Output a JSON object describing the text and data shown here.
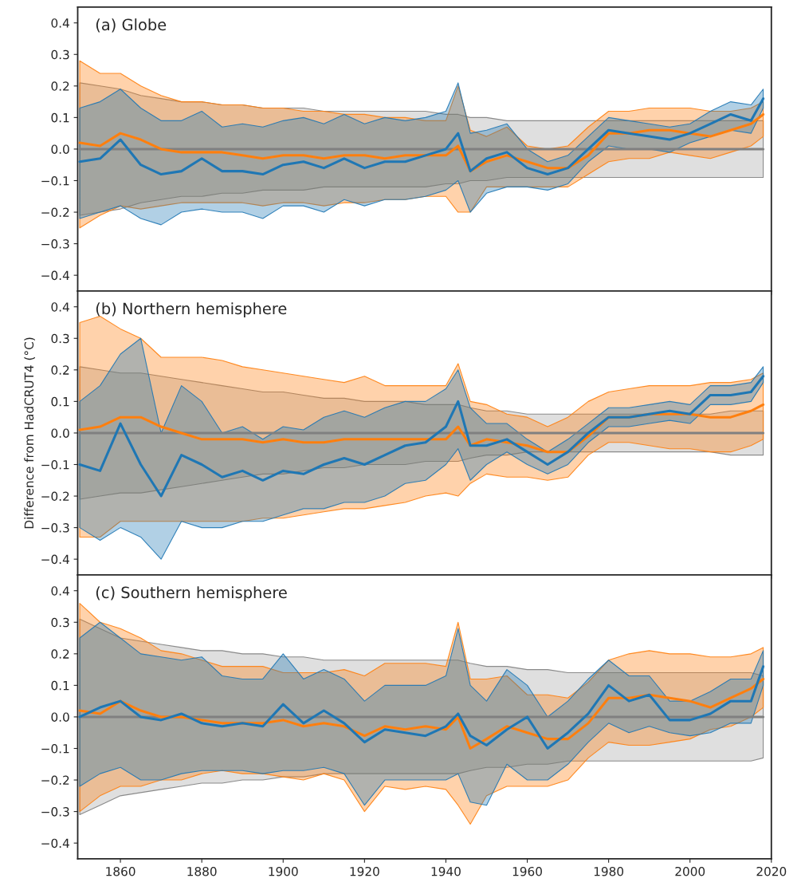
{
  "chart_data": [
    {
      "type": "line",
      "title": "(a) Globe",
      "x": [
        1850,
        1855,
        1860,
        1865,
        1870,
        1875,
        1880,
        1885,
        1890,
        1895,
        1900,
        1905,
        1910,
        1915,
        1920,
        1925,
        1930,
        1935,
        1940,
        1943,
        1946,
        1950,
        1955,
        1960,
        1965,
        1970,
        1975,
        1980,
        1985,
        1990,
        1995,
        2000,
        2005,
        2010,
        2015,
        2018
      ],
      "xlim": [
        1849.5,
        2020
      ],
      "xticks": [
        1860,
        1880,
        1900,
        1920,
        1940,
        1960,
        1980,
        2000,
        2020
      ],
      "ylim": [
        -0.45,
        0.45
      ],
      "yticks": [
        {
          "value": -0.4,
          "label": "−0.4"
        },
        {
          "value": -0.3,
          "label": "−0.3"
        },
        {
          "value": -0.2,
          "label": "−0.2"
        },
        {
          "value": -0.1,
          "label": "−0.1"
        },
        {
          "value": 0.0,
          "label": "0.0"
        },
        0.1,
        0.2,
        0.3,
        0.4
      ],
      "tick_labels": "y",
      "grid": false,
      "line_style": "solid",
      "series": [
        {
          "color": "#808080",
          "values": [
            0,
            0,
            0,
            0,
            0,
            0,
            0,
            0,
            0,
            0,
            0,
            0,
            0,
            0,
            0,
            0,
            0,
            0,
            0,
            0,
            0,
            0,
            0,
            0,
            0,
            0,
            0,
            0,
            0,
            0,
            0,
            0,
            0,
            0,
            0,
            0
          ],
          "lower": [
            -0.21,
            -0.2,
            -0.19,
            -0.17,
            -0.16,
            -0.15,
            -0.15,
            -0.14,
            -0.14,
            -0.13,
            -0.13,
            -0.13,
            -0.12,
            -0.12,
            -0.12,
            -0.12,
            -0.12,
            -0.12,
            -0.11,
            -0.11,
            -0.1,
            -0.1,
            -0.09,
            -0.09,
            -0.09,
            -0.09,
            -0.09,
            -0.09,
            -0.09,
            -0.09,
            -0.09,
            -0.09,
            -0.09,
            -0.09,
            -0.09,
            -0.09
          ],
          "upper": [
            0.21,
            0.2,
            0.19,
            0.17,
            0.16,
            0.15,
            0.15,
            0.14,
            0.14,
            0.13,
            0.13,
            0.13,
            0.12,
            0.12,
            0.12,
            0.12,
            0.12,
            0.12,
            0.11,
            0.11,
            0.1,
            0.1,
            0.09,
            0.09,
            0.09,
            0.09,
            0.09,
            0.09,
            0.09,
            0.09,
            0.09,
            0.09,
            0.09,
            0.09,
            0.09,
            0.09
          ]
        },
        {
          "color": "#ff7f0e",
          "values": [
            0.02,
            0.01,
            0.05,
            0.03,
            0.0,
            -0.01,
            -0.01,
            -0.01,
            -0.02,
            -0.03,
            -0.02,
            -0.02,
            -0.03,
            -0.02,
            -0.02,
            -0.03,
            -0.02,
            -0.02,
            -0.02,
            0.01,
            -0.07,
            -0.04,
            -0.02,
            -0.04,
            -0.06,
            -0.06,
            -0.02,
            0.05,
            0.05,
            0.06,
            0.06,
            0.05,
            0.04,
            0.06,
            0.08,
            0.11
          ],
          "lower": [
            -0.25,
            -0.21,
            -0.18,
            -0.19,
            -0.18,
            -0.17,
            -0.17,
            -0.17,
            -0.17,
            -0.18,
            -0.17,
            -0.17,
            -0.18,
            -0.17,
            -0.17,
            -0.16,
            -0.16,
            -0.15,
            -0.15,
            -0.2,
            -0.2,
            -0.12,
            -0.12,
            -0.12,
            -0.12,
            -0.12,
            -0.08,
            -0.04,
            -0.03,
            -0.03,
            -0.01,
            -0.02,
            -0.03,
            -0.01,
            0.01,
            0.04
          ],
          "upper": [
            0.28,
            0.24,
            0.24,
            0.2,
            0.17,
            0.15,
            0.15,
            0.14,
            0.14,
            0.13,
            0.13,
            0.12,
            0.12,
            0.11,
            0.11,
            0.1,
            0.1,
            0.09,
            0.09,
            0.2,
            0.06,
            0.04,
            0.07,
            0.01,
            0.0,
            0.01,
            0.07,
            0.12,
            0.12,
            0.13,
            0.13,
            0.13,
            0.12,
            0.12,
            0.13,
            0.15
          ]
        },
        {
          "color": "#1f77b4",
          "values": [
            -0.04,
            -0.03,
            0.03,
            -0.05,
            -0.08,
            -0.07,
            -0.03,
            -0.07,
            -0.07,
            -0.08,
            -0.05,
            -0.04,
            -0.06,
            -0.03,
            -0.06,
            -0.04,
            -0.04,
            -0.02,
            0.0,
            0.05,
            -0.07,
            -0.03,
            -0.01,
            -0.06,
            -0.08,
            -0.06,
            0.0,
            0.06,
            0.05,
            0.04,
            0.03,
            0.05,
            0.08,
            0.11,
            0.09,
            0.16
          ],
          "lower": [
            -0.22,
            -0.2,
            -0.18,
            -0.22,
            -0.24,
            -0.2,
            -0.19,
            -0.2,
            -0.2,
            -0.22,
            -0.18,
            -0.18,
            -0.2,
            -0.16,
            -0.18,
            -0.16,
            -0.16,
            -0.15,
            -0.13,
            -0.1,
            -0.2,
            -0.14,
            -0.12,
            -0.12,
            -0.13,
            -0.11,
            -0.04,
            0.01,
            0.0,
            0.0,
            -0.01,
            0.02,
            0.04,
            0.06,
            0.05,
            0.13
          ],
          "upper": [
            0.13,
            0.15,
            0.19,
            0.13,
            0.09,
            0.09,
            0.12,
            0.07,
            0.08,
            0.07,
            0.09,
            0.1,
            0.08,
            0.11,
            0.08,
            0.1,
            0.09,
            0.1,
            0.12,
            0.21,
            0.05,
            0.06,
            0.08,
            0.0,
            -0.04,
            -0.02,
            0.04,
            0.1,
            0.09,
            0.08,
            0.07,
            0.08,
            0.12,
            0.15,
            0.14,
            0.19
          ]
        }
      ]
    },
    {
      "type": "line",
      "title": "(b) Northern hemisphere",
      "ylabel": "Difference from HadCRUT4 (°C)",
      "x": [
        1850,
        1855,
        1860,
        1865,
        1870,
        1875,
        1880,
        1885,
        1890,
        1895,
        1900,
        1905,
        1910,
        1915,
        1920,
        1925,
        1930,
        1935,
        1940,
        1943,
        1946,
        1950,
        1955,
        1960,
        1965,
        1970,
        1975,
        1980,
        1985,
        1990,
        1995,
        2000,
        2005,
        2010,
        2015,
        2018
      ],
      "xlim": [
        1849.5,
        2020
      ],
      "xticks": [
        1860,
        1880,
        1900,
        1920,
        1940,
        1960,
        1980,
        2000,
        2020
      ],
      "ylim": [
        -0.45,
        0.45
      ],
      "yticks": [
        {
          "value": -0.4,
          "label": "−0.4"
        },
        {
          "value": -0.3,
          "label": "−0.3"
        },
        {
          "value": -0.2,
          "label": "−0.2"
        },
        {
          "value": -0.1,
          "label": "−0.1"
        },
        {
          "value": 0.0,
          "label": "0.0"
        },
        0.1,
        0.2,
        0.3,
        0.4
      ],
      "tick_labels": "y",
      "grid": false,
      "line_style": "solid",
      "series": [
        {
          "color": "#808080",
          "values": [
            0,
            0,
            0,
            0,
            0,
            0,
            0,
            0,
            0,
            0,
            0,
            0,
            0,
            0,
            0,
            0,
            0,
            0,
            0,
            0,
            0,
            0,
            0,
            0,
            0,
            0,
            0,
            0,
            0,
            0,
            0,
            0,
            0,
            0,
            0,
            0
          ],
          "lower": [
            -0.21,
            -0.2,
            -0.19,
            -0.19,
            -0.18,
            -0.17,
            -0.16,
            -0.15,
            -0.14,
            -0.13,
            -0.13,
            -0.12,
            -0.11,
            -0.11,
            -0.1,
            -0.1,
            -0.1,
            -0.09,
            -0.09,
            -0.09,
            -0.08,
            -0.07,
            -0.07,
            -0.06,
            -0.06,
            -0.06,
            -0.06,
            -0.06,
            -0.06,
            -0.06,
            -0.06,
            -0.06,
            -0.06,
            -0.07,
            -0.07,
            -0.07
          ],
          "upper": [
            0.21,
            0.2,
            0.19,
            0.19,
            0.18,
            0.17,
            0.16,
            0.15,
            0.14,
            0.13,
            0.13,
            0.12,
            0.11,
            0.11,
            0.1,
            0.1,
            0.1,
            0.09,
            0.09,
            0.09,
            0.08,
            0.07,
            0.07,
            0.06,
            0.06,
            0.06,
            0.06,
            0.06,
            0.06,
            0.06,
            0.06,
            0.06,
            0.06,
            0.07,
            0.07,
            0.07
          ]
        },
        {
          "color": "#ff7f0e",
          "values": [
            0.01,
            0.02,
            0.05,
            0.05,
            0.02,
            0.0,
            -0.02,
            -0.02,
            -0.02,
            -0.03,
            -0.02,
            -0.03,
            -0.03,
            -0.02,
            -0.02,
            -0.02,
            -0.02,
            -0.02,
            -0.02,
            0.02,
            -0.04,
            -0.02,
            -0.03,
            -0.04,
            -0.06,
            -0.06,
            -0.01,
            0.05,
            0.05,
            0.06,
            0.06,
            0.06,
            0.05,
            0.05,
            0.07,
            0.09
          ],
          "lower": [
            -0.33,
            -0.33,
            -0.28,
            -0.28,
            -0.28,
            -0.28,
            -0.28,
            -0.28,
            -0.28,
            -0.27,
            -0.27,
            -0.26,
            -0.25,
            -0.24,
            -0.24,
            -0.23,
            -0.22,
            -0.2,
            -0.19,
            -0.2,
            -0.16,
            -0.13,
            -0.14,
            -0.14,
            -0.15,
            -0.14,
            -0.07,
            -0.03,
            -0.03,
            -0.04,
            -0.05,
            -0.05,
            -0.06,
            -0.06,
            -0.04,
            -0.02
          ],
          "upper": [
            0.35,
            0.37,
            0.33,
            0.3,
            0.24,
            0.24,
            0.24,
            0.23,
            0.21,
            0.2,
            0.19,
            0.18,
            0.17,
            0.16,
            0.18,
            0.15,
            0.15,
            0.15,
            0.15,
            0.22,
            0.1,
            0.09,
            0.06,
            0.05,
            0.02,
            0.05,
            0.1,
            0.13,
            0.14,
            0.15,
            0.15,
            0.15,
            0.16,
            0.16,
            0.17,
            0.19
          ]
        },
        {
          "color": "#1f77b4",
          "values": [
            -0.1,
            -0.12,
            0.03,
            -0.1,
            -0.2,
            -0.07,
            -0.1,
            -0.14,
            -0.12,
            -0.15,
            -0.12,
            -0.13,
            -0.1,
            -0.08,
            -0.1,
            -0.07,
            -0.04,
            -0.03,
            0.02,
            0.1,
            -0.04,
            -0.04,
            -0.02,
            -0.06,
            -0.1,
            -0.06,
            0.0,
            0.05,
            0.05,
            0.06,
            0.07,
            0.06,
            0.12,
            0.12,
            0.13,
            0.18
          ],
          "lower": [
            -0.3,
            -0.34,
            -0.3,
            -0.33,
            -0.4,
            -0.28,
            -0.3,
            -0.3,
            -0.28,
            -0.28,
            -0.26,
            -0.24,
            -0.24,
            -0.22,
            -0.22,
            -0.2,
            -0.16,
            -0.15,
            -0.1,
            -0.05,
            -0.15,
            -0.1,
            -0.06,
            -0.1,
            -0.13,
            -0.1,
            -0.03,
            0.02,
            0.02,
            0.03,
            0.04,
            0.03,
            0.09,
            0.09,
            0.1,
            0.16
          ],
          "upper": [
            0.1,
            0.15,
            0.25,
            0.3,
            0.0,
            0.15,
            0.1,
            0.0,
            0.02,
            -0.02,
            0.02,
            0.01,
            0.05,
            0.07,
            0.05,
            0.08,
            0.1,
            0.1,
            0.14,
            0.2,
            0.08,
            0.03,
            0.03,
            -0.02,
            -0.06,
            -0.02,
            0.03,
            0.08,
            0.08,
            0.09,
            0.1,
            0.09,
            0.15,
            0.15,
            0.16,
            0.21
          ]
        }
      ]
    },
    {
      "type": "line",
      "title": "(c) Southern hemisphere",
      "x": [
        1850,
        1855,
        1860,
        1865,
        1870,
        1875,
        1880,
        1885,
        1890,
        1895,
        1900,
        1905,
        1910,
        1915,
        1920,
        1925,
        1930,
        1935,
        1940,
        1943,
        1946,
        1950,
        1955,
        1960,
        1965,
        1970,
        1975,
        1980,
        1985,
        1990,
        1995,
        2000,
        2005,
        2010,
        2015,
        2018
      ],
      "xlim": [
        1849.5,
        2020
      ],
      "xticks": [
        1860,
        1880,
        1900,
        1920,
        1940,
        1960,
        1980,
        2000,
        2020
      ],
      "ylim": [
        -0.45,
        0.45
      ],
      "yticks": [
        {
          "value": -0.4,
          "label": "−0.4"
        },
        {
          "value": -0.3,
          "label": "−0.3"
        },
        {
          "value": -0.2,
          "label": "−0.2"
        },
        {
          "value": -0.1,
          "label": "−0.1"
        },
        {
          "value": 0.0,
          "label": "0.0"
        },
        0.1,
        0.2,
        0.3,
        0.4
      ],
      "grid": false,
      "line_style": "solid",
      "series": [
        {
          "color": "#808080",
          "values": [
            0,
            0,
            0,
            0,
            0,
            0,
            0,
            0,
            0,
            0,
            0,
            0,
            0,
            0,
            0,
            0,
            0,
            0,
            0,
            0,
            0,
            0,
            0,
            0,
            0,
            0,
            0,
            0,
            0,
            0,
            0,
            0,
            0,
            0,
            0,
            0
          ],
          "lower": [
            -0.31,
            -0.28,
            -0.25,
            -0.24,
            -0.23,
            -0.22,
            -0.21,
            -0.21,
            -0.2,
            -0.2,
            -0.19,
            -0.19,
            -0.18,
            -0.18,
            -0.18,
            -0.18,
            -0.18,
            -0.18,
            -0.18,
            -0.18,
            -0.17,
            -0.16,
            -0.16,
            -0.15,
            -0.15,
            -0.14,
            -0.14,
            -0.14,
            -0.14,
            -0.14,
            -0.14,
            -0.14,
            -0.14,
            -0.14,
            -0.14,
            -0.13
          ],
          "upper": [
            0.31,
            0.28,
            0.25,
            0.24,
            0.23,
            0.22,
            0.21,
            0.21,
            0.2,
            0.2,
            0.19,
            0.19,
            0.18,
            0.18,
            0.18,
            0.18,
            0.18,
            0.18,
            0.18,
            0.18,
            0.17,
            0.16,
            0.16,
            0.15,
            0.15,
            0.14,
            0.14,
            0.14,
            0.14,
            0.14,
            0.14,
            0.14,
            0.14,
            0.14,
            0.14,
            0.13
          ]
        },
        {
          "color": "#ff7f0e",
          "values": [
            0.02,
            0.01,
            0.05,
            0.02,
            0.0,
            0.0,
            -0.01,
            -0.02,
            -0.02,
            -0.02,
            -0.01,
            -0.03,
            -0.02,
            -0.03,
            -0.06,
            -0.03,
            -0.04,
            -0.03,
            -0.04,
            0.0,
            -0.1,
            -0.07,
            -0.03,
            -0.05,
            -0.07,
            -0.07,
            -0.02,
            0.06,
            0.06,
            0.07,
            0.06,
            0.05,
            0.03,
            0.06,
            0.09,
            0.12
          ],
          "lower": [
            -0.3,
            -0.25,
            -0.22,
            -0.22,
            -0.2,
            -0.2,
            -0.18,
            -0.17,
            -0.18,
            -0.18,
            -0.19,
            -0.2,
            -0.18,
            -0.2,
            -0.3,
            -0.22,
            -0.23,
            -0.22,
            -0.23,
            -0.28,
            -0.34,
            -0.25,
            -0.22,
            -0.22,
            -0.22,
            -0.2,
            -0.13,
            -0.08,
            -0.09,
            -0.09,
            -0.08,
            -0.07,
            -0.04,
            -0.03,
            0.0,
            0.03
          ],
          "upper": [
            0.36,
            0.3,
            0.28,
            0.25,
            0.21,
            0.2,
            0.18,
            0.16,
            0.16,
            0.16,
            0.14,
            0.14,
            0.14,
            0.15,
            0.13,
            0.17,
            0.17,
            0.17,
            0.16,
            0.3,
            0.12,
            0.12,
            0.13,
            0.07,
            0.07,
            0.06,
            0.11,
            0.18,
            0.2,
            0.21,
            0.2,
            0.2,
            0.19,
            0.19,
            0.2,
            0.22
          ]
        },
        {
          "color": "#1f77b4",
          "values": [
            0.0,
            0.03,
            0.05,
            0.0,
            -0.01,
            0.01,
            -0.02,
            -0.03,
            -0.02,
            -0.03,
            0.04,
            -0.02,
            0.02,
            -0.02,
            -0.08,
            -0.04,
            -0.05,
            -0.06,
            -0.03,
            0.01,
            -0.06,
            -0.09,
            -0.04,
            0.0,
            -0.1,
            -0.05,
            0.01,
            0.1,
            0.05,
            0.07,
            -0.01,
            -0.01,
            0.01,
            0.05,
            0.05,
            0.16
          ],
          "lower": [
            -0.22,
            -0.18,
            -0.16,
            -0.2,
            -0.2,
            -0.18,
            -0.17,
            -0.17,
            -0.17,
            -0.18,
            -0.17,
            -0.17,
            -0.16,
            -0.18,
            -0.28,
            -0.2,
            -0.2,
            -0.2,
            -0.2,
            -0.18,
            -0.27,
            -0.28,
            -0.15,
            -0.2,
            -0.2,
            -0.15,
            -0.08,
            -0.02,
            -0.05,
            -0.03,
            -0.05,
            -0.06,
            -0.05,
            -0.02,
            -0.02,
            0.1
          ],
          "upper": [
            0.25,
            0.3,
            0.25,
            0.2,
            0.19,
            0.18,
            0.19,
            0.13,
            0.12,
            0.12,
            0.2,
            0.12,
            0.15,
            0.12,
            0.05,
            0.1,
            0.1,
            0.1,
            0.13,
            0.28,
            0.1,
            0.05,
            0.15,
            0.1,
            0.0,
            0.05,
            0.12,
            0.18,
            0.13,
            0.13,
            0.05,
            0.05,
            0.08,
            0.12,
            0.12,
            0.21
          ]
        }
      ]
    }
  ]
}
